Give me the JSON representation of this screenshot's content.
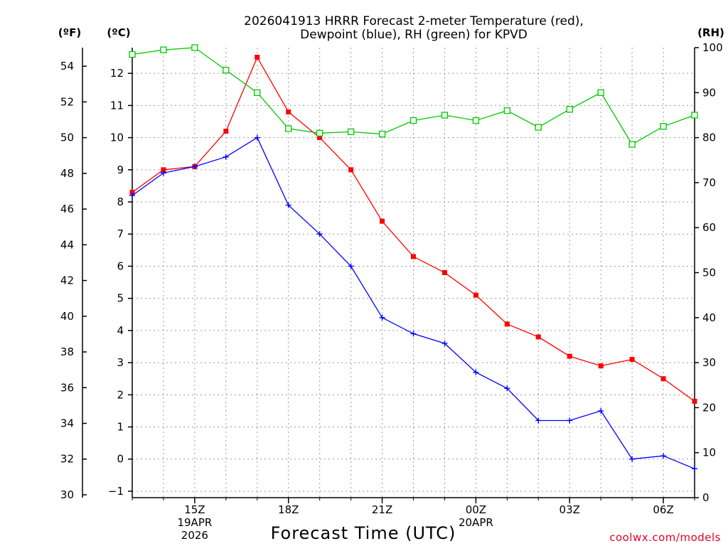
{
  "chart_data": {
    "type": "line",
    "title": [
      "2026041913 HRRR Forecast 2-meter Temperature (red),",
      "Dewpoint (blue), RH (green) for KPVD"
    ],
    "xlabel": "Forecast Time (UTC)",
    "credit": "coolwx.com/models",
    "units": {
      "fahrenheit": "(ºF)",
      "celsius": "(ºC)",
      "rh": "(RH)"
    },
    "x_hours": [
      13,
      14,
      15,
      16,
      17,
      18,
      19,
      20,
      21,
      22,
      23,
      24,
      25,
      26,
      27,
      28,
      29,
      30,
      31
    ],
    "x_ticks": [
      {
        "hour": 15,
        "lines": [
          "15Z",
          "19APR",
          "2026"
        ]
      },
      {
        "hour": 18,
        "lines": [
          "18Z"
        ]
      },
      {
        "hour": 21,
        "lines": [
          "21Z"
        ]
      },
      {
        "hour": 24,
        "lines": [
          "00Z",
          "20APR"
        ]
      },
      {
        "hour": 27,
        "lines": [
          "03Z"
        ]
      },
      {
        "hour": 30,
        "lines": [
          "06Z"
        ]
      }
    ],
    "xlim": [
      13,
      31
    ],
    "celsius_axis": {
      "range": [
        -1.2,
        12.8
      ],
      "ticks": [
        -1,
        0,
        1,
        2,
        3,
        4,
        5,
        6,
        7,
        8,
        9,
        10,
        11,
        12
      ]
    },
    "fahrenheit_axis": {
      "ticks": [
        30,
        32,
        34,
        36,
        38,
        40,
        42,
        44,
        46,
        48,
        50,
        52,
        54
      ]
    },
    "rh_axis": {
      "range": [
        0,
        100
      ],
      "ticks": [
        0,
        10,
        20,
        30,
        40,
        50,
        60,
        70,
        80,
        90,
        100
      ]
    },
    "series": [
      {
        "name": "Temperature",
        "unit": "C",
        "color": "#ff0000",
        "marker": "filled-square",
        "values": [
          8.3,
          9.0,
          9.1,
          10.2,
          12.5,
          10.8,
          10.0,
          9.0,
          7.4,
          6.3,
          5.8,
          5.1,
          4.2,
          3.8,
          3.2,
          2.9,
          3.1,
          2.5,
          1.8
        ]
      },
      {
        "name": "Dewpoint",
        "unit": "C",
        "color": "#0000ff",
        "marker": "plus",
        "values": [
          8.2,
          8.9,
          9.1,
          9.4,
          10.0,
          7.9,
          7.0,
          6.0,
          4.4,
          3.9,
          3.6,
          2.7,
          2.2,
          1.2,
          1.2,
          1.5,
          0.0,
          0.1,
          -0.3
        ]
      },
      {
        "name": "RH",
        "unit": "%",
        "color": "#00c800",
        "marker": "open-square",
        "values": [
          98.5,
          99.5,
          100.0,
          95.0,
          90.0,
          82.0,
          81.0,
          81.3,
          80.8,
          83.8,
          85.0,
          83.8,
          86.0,
          82.3,
          86.3,
          90.0,
          78.5,
          82.5,
          85.0
        ]
      }
    ]
  }
}
